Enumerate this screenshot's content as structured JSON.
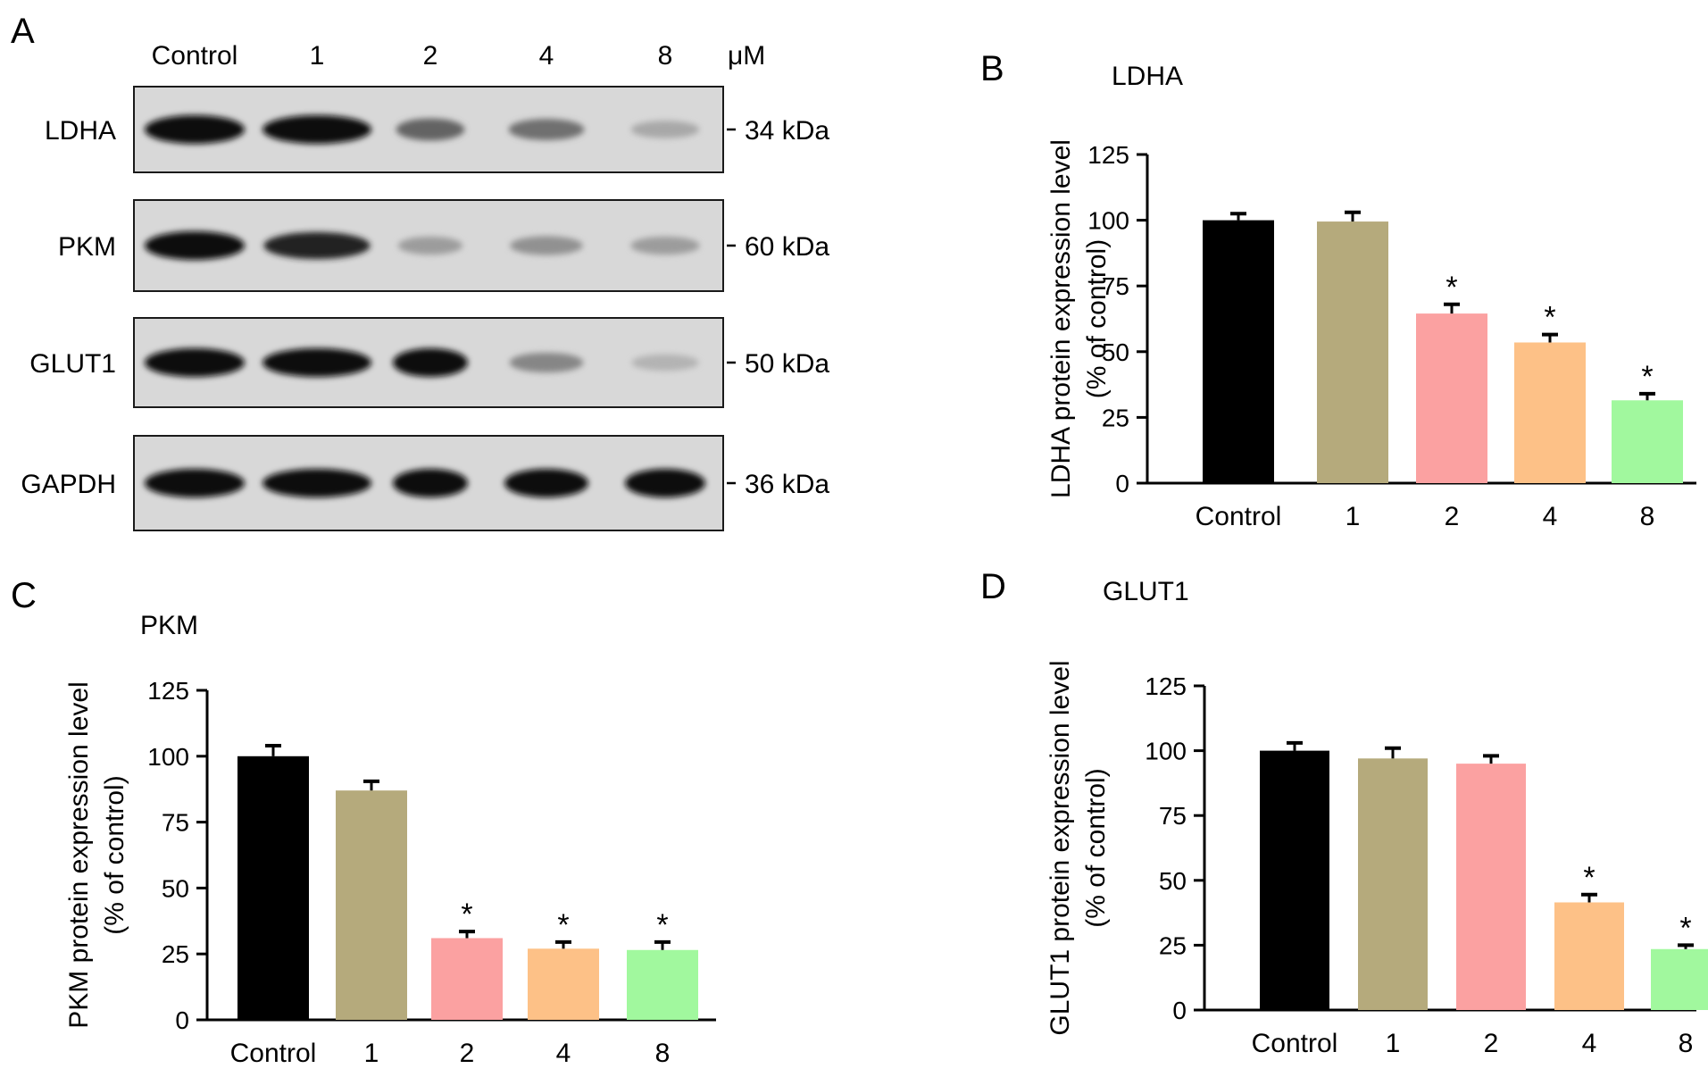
{
  "panels": {
    "a": "A",
    "b": "B",
    "c": "C",
    "d": "D"
  },
  "blot": {
    "lanes": [
      "Control",
      "1",
      "2",
      "4",
      "8"
    ],
    "unit": "μM",
    "rows": [
      {
        "protein": "LDHA",
        "marker": "34 kDa",
        "intensity": [
          1.0,
          1.0,
          0.6,
          0.55,
          0.3
        ]
      },
      {
        "protein": "PKM",
        "marker": "60 kDa",
        "intensity": [
          1.0,
          0.9,
          0.35,
          0.4,
          0.35
        ]
      },
      {
        "protein": "GLUT1",
        "marker": "50 kDa",
        "intensity": [
          1.0,
          1.0,
          1.0,
          0.45,
          0.25
        ]
      },
      {
        "protein": "GAPDH",
        "marker": "36 kDa",
        "intensity": [
          1.0,
          1.0,
          1.0,
          1.0,
          1.0
        ]
      }
    ]
  },
  "chart_data": [
    {
      "type": "bar",
      "panel": "B",
      "title": "LDHA",
      "ylabel_line1": "LDHA protein expression level",
      "ylabel_line2": "(% of control)",
      "categories": [
        "Control",
        "1",
        "2",
        "4",
        "8"
      ],
      "values": [
        100,
        99.5,
        64.5,
        53.5,
        31.5
      ],
      "errors": [
        2.5,
        3.5,
        3.5,
        3.0,
        2.5
      ],
      "significant": [
        false,
        false,
        true,
        true,
        true
      ],
      "ylim": [
        0,
        125
      ],
      "yticks": [
        0,
        25,
        50,
        75,
        100,
        125
      ],
      "colors": [
        "#000000",
        "#b5aa7c",
        "#fba1a1",
        "#fdc187",
        "#a1f89e"
      ],
      "marker": "*"
    },
    {
      "type": "bar",
      "panel": "C",
      "title": "PKM",
      "ylabel_line1": "PKM protein expression level",
      "ylabel_line2": "(% of control)",
      "categories": [
        "Control",
        "1",
        "2",
        "4",
        "8"
      ],
      "values": [
        100,
        87,
        31,
        27,
        26.5
      ],
      "errors": [
        4.0,
        3.5,
        2.5,
        2.5,
        3.0
      ],
      "significant": [
        false,
        false,
        true,
        true,
        true
      ],
      "ylim": [
        0,
        125
      ],
      "yticks": [
        0,
        25,
        50,
        75,
        100,
        125
      ],
      "colors": [
        "#000000",
        "#b5aa7c",
        "#fba1a1",
        "#fdc187",
        "#a1f89e"
      ],
      "marker": "*"
    },
    {
      "type": "bar",
      "panel": "D",
      "title": "GLUT1",
      "ylabel_line1": "GLUT1 protein expression level",
      "ylabel_line2": "(% of control)",
      "categories": [
        "Control",
        "1",
        "2",
        "4",
        "8"
      ],
      "values": [
        100,
        97,
        95,
        41.5,
        23.5
      ],
      "errors": [
        3.0,
        4.0,
        3.0,
        3.0,
        1.5
      ],
      "significant": [
        false,
        false,
        false,
        true,
        true
      ],
      "ylim": [
        0,
        125
      ],
      "yticks": [
        0,
        25,
        50,
        75,
        100,
        125
      ],
      "colors": [
        "#000000",
        "#b5aa7c",
        "#fba1a1",
        "#fdc187",
        "#a1f89e"
      ],
      "marker": "*"
    }
  ]
}
